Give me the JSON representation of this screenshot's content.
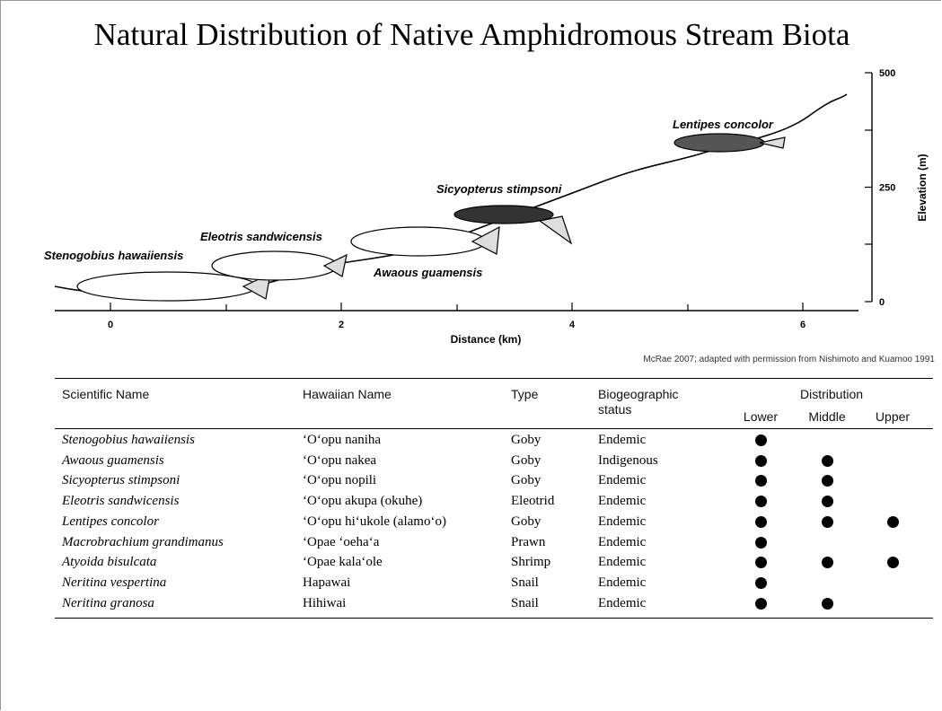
{
  "title": "Natural Distribution of Native Amphidromous Stream Biota",
  "figure": {
    "x_label": "Distance (km)",
    "y_label": "Elevation (m)",
    "xticks": [
      0,
      2,
      4,
      6
    ],
    "yticks": [
      0,
      250,
      500
    ],
    "species_labels": [
      "Stenogobius hawaiiensis",
      "Eleotris sandwicensis",
      "Awaous guamensis",
      "Sicyopterus stimpsoni",
      "Lentipes concolor"
    ],
    "credit": "McRae 2007; adapted with permission from Nishimoto and Kuamoo 1991"
  },
  "table": {
    "headers": {
      "scientific": "Scientific Name",
      "hawaiian": "Hawaiian Name",
      "type": "Type",
      "status": "Biogeographic status",
      "distribution": "Distribution",
      "zones": [
        "Lower",
        "Middle",
        "Upper"
      ]
    },
    "rows": [
      {
        "scientific": "Stenogobius hawaiiensis",
        "hawaiian": "‘O‘opu naniha",
        "type": "Goby",
        "status": "Endemic",
        "distribution": [
          true,
          false,
          false
        ]
      },
      {
        "scientific": "Awaous guamensis",
        "hawaiian": "‘O‘opu nakea",
        "type": "Goby",
        "status": "Indigenous",
        "distribution": [
          true,
          true,
          false
        ]
      },
      {
        "scientific": "Sicyopterus stimpsoni",
        "hawaiian": "‘O‘opu nopili",
        "type": "Goby",
        "status": "Endemic",
        "distribution": [
          true,
          true,
          false
        ]
      },
      {
        "scientific": "Eleotris sandwicensis",
        "hawaiian": "‘O‘opu akupa (okuhe)",
        "type": "Eleotrid",
        "status": "Endemic",
        "distribution": [
          true,
          true,
          false
        ]
      },
      {
        "scientific": "Lentipes concolor",
        "hawaiian": "‘O‘opu hi‘ukole (alamo‘o)",
        "type": "Goby",
        "status": "Endemic",
        "distribution": [
          true,
          true,
          true
        ]
      },
      {
        "scientific": "Macrobrachium grandimanus",
        "hawaiian": "‘Opae ‘oeha‘a",
        "type": "Prawn",
        "status": "Endemic",
        "distribution": [
          true,
          false,
          false
        ]
      },
      {
        "scientific": "Atyoida bisulcata",
        "hawaiian": "‘Opae kala‘ole",
        "type": "Shrimp",
        "status": "Endemic",
        "distribution": [
          true,
          true,
          true
        ]
      },
      {
        "scientific": "Neritina vespertina",
        "hawaiian": "Hapawai",
        "type": "Snail",
        "status": "Endemic",
        "distribution": [
          true,
          false,
          false
        ]
      },
      {
        "scientific": "Neritina granosa",
        "hawaiian": "Hihiwai",
        "type": "Snail",
        "status": "Endemic",
        "distribution": [
          true,
          true,
          false
        ]
      }
    ]
  }
}
